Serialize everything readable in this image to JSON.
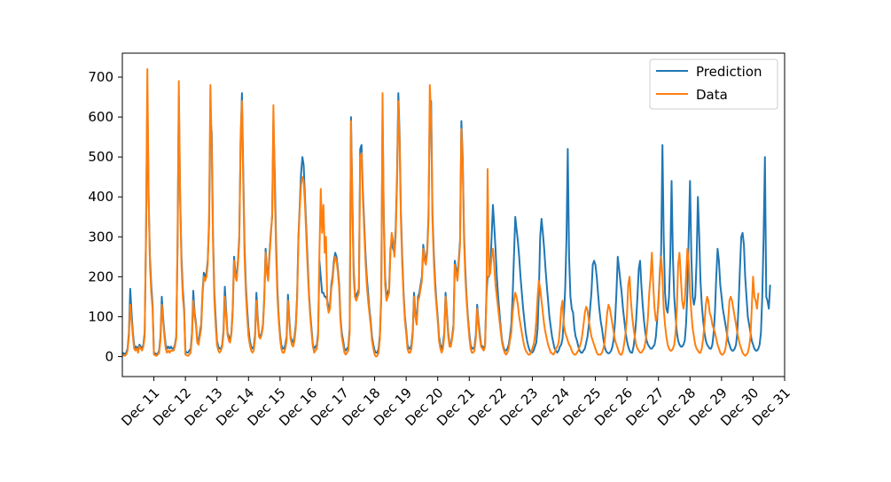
{
  "chart_data": {
    "type": "line",
    "title": "",
    "xlabel": "",
    "ylabel": "",
    "xlim": [
      "2012-12-10",
      "2012-12-31"
    ],
    "ylim": [
      -50,
      760
    ],
    "x_ticks": [
      "Dec 11",
      "Dec 12",
      "Dec 13",
      "Dec 14",
      "Dec 15",
      "Dec 16",
      "Dec 17",
      "Dec 18",
      "Dec 19",
      "Dec 20",
      "Dec 21",
      "Dec 22",
      "Dec 23",
      "Dec 24",
      "Dec 25",
      "Dec 26",
      "Dec 27",
      "Dec 28",
      "Dec 29",
      "Dec 30",
      "Dec 31"
    ],
    "y_ticks": [
      0,
      100,
      200,
      300,
      400,
      500,
      600,
      700
    ],
    "x_start": "2012-12-10T00:00",
    "x_interval_hours": 1,
    "legend": {
      "position": "top-right",
      "entries": [
        "Prediction",
        "Data"
      ]
    },
    "grid": false,
    "series": [
      {
        "name": "Prediction",
        "color": "#1f77b4",
        "values": [
          10,
          8,
          7,
          10,
          20,
          60,
          170,
          110,
          60,
          30,
          20,
          25,
          15,
          30,
          25,
          20,
          30,
          60,
          300,
          660,
          400,
          250,
          180,
          130,
          10,
          8,
          6,
          8,
          15,
          50,
          150,
          100,
          60,
          30,
          20,
          25,
          20,
          25,
          20,
          20,
          30,
          50,
          280,
          650,
          400,
          250,
          170,
          120,
          15,
          10,
          10,
          15,
          20,
          60,
          165,
          110,
          85,
          40,
          40,
          60,
          80,
          160,
          210,
          200,
          210,
          240,
          330,
          600,
          560,
          300,
          160,
          100,
          40,
          25,
          20,
          20,
          30,
          65,
          175,
          115,
          60,
          50,
          40,
          60,
          120,
          250,
          210,
          200,
          240,
          300,
          540,
          660,
          460,
          280,
          180,
          120,
          70,
          40,
          25,
          20,
          25,
          55,
          160,
          100,
          55,
          50,
          60,
          80,
          150,
          270,
          220,
          200,
          260,
          310,
          350,
          590,
          460,
          290,
          170,
          100,
          55,
          30,
          20,
          20,
          30,
          50,
          155,
          100,
          50,
          40,
          35,
          50,
          80,
          150,
          300,
          380,
          460,
          500,
          480,
          400,
          320,
          240,
          160,
          110,
          70,
          30,
          20,
          25,
          30,
          60,
          240,
          200,
          160,
          160,
          150,
          150,
          140,
          120,
          130,
          180,
          200,
          240,
          260,
          250,
          220,
          180,
          100,
          60,
          40,
          20,
          15,
          20,
          25,
          70,
          600,
          400,
          220,
          160,
          150,
          160,
          170,
          520,
          530,
          420,
          340,
          260,
          200,
          160,
          120,
          90,
          50,
          30,
          15,
          10,
          10,
          20,
          55,
          150,
          600,
          350,
          200,
          150,
          160,
          170,
          270,
          290,
          270,
          260,
          320,
          450,
          660,
          560,
          360,
          250,
          160,
          100,
          70,
          30,
          20,
          20,
          30,
          65,
          160,
          110,
          90,
          150,
          160,
          180,
          200,
          280,
          250,
          240,
          270,
          350,
          620,
          640,
          360,
          260,
          190,
          140,
          100,
          50,
          30,
          20,
          30,
          60,
          160,
          110,
          60,
          30,
          30,
          50,
          80,
          240,
          220,
          200,
          240,
          290,
          590,
          500,
          310,
          220,
          150,
          100,
          60,
          30,
          20,
          20,
          25,
          55,
          130,
          90,
          60,
          30,
          25,
          20,
          30,
          150,
          200,
          200,
          220,
          300,
          380,
          330,
          270,
          200,
          150,
          110,
          70,
          40,
          25,
          15,
          15,
          20,
          30,
          50,
          80,
          150,
          250,
          350,
          320,
          290,
          250,
          200,
          160,
          120,
          90,
          60,
          40,
          25,
          15,
          10,
          10,
          15,
          25,
          35,
          70,
          160,
          300,
          345,
          310,
          270,
          220,
          180,
          140,
          100,
          75,
          50,
          35,
          20,
          15,
          10,
          15,
          25,
          30,
          45,
          100,
          170,
          300,
          520,
          250,
          150,
          120,
          110,
          70,
          50,
          40,
          25,
          15,
          10,
          10,
          15,
          20,
          35,
          50,
          80,
          120,
          160,
          230,
          240,
          230,
          200,
          160,
          120,
          90,
          70,
          45,
          25,
          15,
          10,
          8,
          10,
          15,
          25,
          45,
          90,
          160,
          250,
          220,
          190,
          160,
          120,
          90,
          60,
          40,
          25,
          15,
          10,
          10,
          25,
          50,
          90,
          150,
          220,
          240,
          180,
          130,
          90,
          60,
          40,
          30,
          25,
          20,
          20,
          25,
          30,
          50,
          90,
          140,
          210,
          260,
          530,
          300,
          160,
          120,
          110,
          150,
          250,
          440,
          250,
          150,
          100,
          60,
          40,
          30,
          25,
          25,
          30,
          40,
          80,
          160,
          300,
          440,
          250,
          150,
          130,
          150,
          240,
          400,
          300,
          190,
          130,
          90,
          60,
          40,
          30,
          25,
          20,
          20,
          30,
          60,
          110,
          200,
          270,
          240,
          180,
          150,
          120,
          100,
          80,
          60,
          40,
          30,
          20,
          15,
          15,
          20,
          30,
          60,
          130,
          220,
          300,
          310,
          280,
          200,
          150,
          100,
          80,
          60,
          40,
          30,
          20,
          15,
          15,
          20,
          30,
          60,
          150,
          300,
          500,
          150,
          140,
          120,
          180
        ]
      },
      {
        "name": "Data",
        "color": "#ff7f0e",
        "values": [
          5,
          3,
          2,
          5,
          15,
          50,
          130,
          90,
          50,
          20,
          15,
          20,
          10,
          25,
          20,
          15,
          25,
          50,
          320,
          720,
          410,
          230,
          160,
          120,
          5,
          3,
          2,
          5,
          10,
          40,
          130,
          90,
          50,
          20,
          10,
          15,
          10,
          15,
          15,
          15,
          25,
          45,
          300,
          690,
          390,
          230,
          150,
          110,
          5,
          3,
          2,
          5,
          10,
          50,
          140,
          100,
          80,
          35,
          30,
          50,
          70,
          150,
          200,
          190,
          200,
          230,
          350,
          680,
          520,
          280,
          140,
          80,
          30,
          15,
          10,
          15,
          25,
          55,
          150,
          100,
          55,
          40,
          35,
          55,
          110,
          240,
          200,
          190,
          230,
          290,
          550,
          640,
          430,
          250,
          160,
          100,
          50,
          30,
          15,
          10,
          15,
          45,
          140,
          90,
          50,
          45,
          55,
          75,
          140,
          260,
          210,
          190,
          250,
          300,
          360,
          630,
          420,
          260,
          150,
          90,
          45,
          20,
          10,
          10,
          20,
          40,
          140,
          90,
          45,
          30,
          25,
          40,
          70,
          140,
          290,
          370,
          430,
          450,
          440,
          380,
          300,
          220,
          150,
          100,
          60,
          25,
          10,
          15,
          20,
          50,
          260,
          420,
          310,
          380,
          260,
          300,
          130,
          110,
          120,
          170,
          190,
          230,
          250,
          240,
          210,
          170,
          90,
          50,
          30,
          10,
          5,
          10,
          15,
          60,
          590,
          380,
          200,
          150,
          140,
          150,
          160,
          500,
          510,
          400,
          320,
          240,
          180,
          140,
          110,
          80,
          40,
          20,
          5,
          0,
          2,
          10,
          45,
          140,
          660,
          330,
          180,
          140,
          150,
          160,
          260,
          310,
          290,
          250,
          300,
          430,
          640,
          540,
          340,
          230,
          150,
          90,
          60,
          20,
          10,
          10,
          20,
          55,
          150,
          100,
          80,
          140,
          150,
          170,
          190,
          270,
          240,
          230,
          260,
          340,
          680,
          600,
          340,
          240,
          170,
          130,
          90,
          40,
          20,
          10,
          20,
          50,
          150,
          100,
          50,
          25,
          25,
          45,
          70,
          230,
          210,
          190,
          230,
          280,
          570,
          480,
          290,
          200,
          140,
          90,
          50,
          20,
          10,
          10,
          15,
          45,
          120,
          80,
          50,
          25,
          20,
          15,
          25,
          140,
          470,
          200,
          210,
          250,
          270,
          230,
          180,
          150,
          120,
          90,
          60,
          35,
          20,
          10,
          5,
          10,
          20,
          40,
          60,
          110,
          140,
          160,
          150,
          130,
          100,
          80,
          60,
          40,
          25,
          15,
          10,
          5,
          5,
          10,
          20,
          30,
          50,
          90,
          150,
          190,
          170,
          140,
          110,
          80,
          60,
          45,
          30,
          20,
          10,
          8,
          5,
          10,
          20,
          25,
          35,
          70,
          120,
          140,
          80,
          60,
          50,
          40,
          30,
          25,
          15,
          8,
          5,
          5,
          10,
          15,
          25,
          35,
          55,
          80,
          110,
          125,
          115,
          90,
          70,
          50,
          40,
          30,
          20,
          10,
          5,
          5,
          5,
          10,
          20,
          35,
          70,
          110,
          130,
          120,
          100,
          80,
          60,
          40,
          30,
          20,
          10,
          5,
          5,
          15,
          35,
          60,
          100,
          180,
          200,
          140,
          100,
          70,
          50,
          30,
          20,
          15,
          10,
          10,
          15,
          20,
          35,
          60,
          100,
          160,
          200,
          260,
          180,
          120,
          90,
          100,
          130,
          200,
          250,
          200,
          120,
          80,
          50,
          30,
          20,
          15,
          15,
          20,
          30,
          60,
          120,
          230,
          260,
          200,
          140,
          120,
          140,
          200,
          270,
          240,
          160,
          110,
          70,
          50,
          30,
          20,
          15,
          10,
          10,
          20,
          45,
          80,
          130,
          150,
          140,
          110,
          100,
          80,
          70,
          60,
          45,
          30,
          20,
          10,
          5,
          5,
          10,
          20,
          45,
          90,
          140,
          150,
          140,
          120,
          100,
          80,
          60,
          45,
          30,
          20,
          10,
          5,
          2,
          5,
          10,
          25,
          50,
          120,
          200,
          150,
          140,
          120,
          160
        ]
      }
    ]
  }
}
